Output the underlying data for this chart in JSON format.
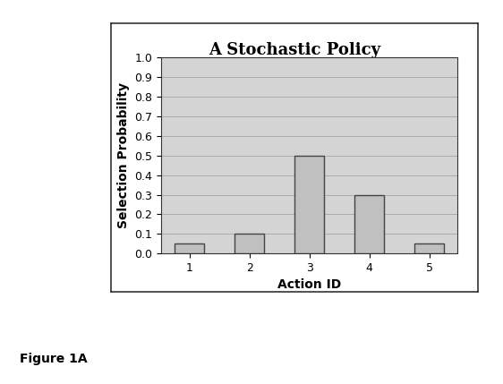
{
  "title": "A Stochastic Policy",
  "xlabel": "Action ID",
  "ylabel": "Selection Probability",
  "categories": [
    1,
    2,
    3,
    4,
    5
  ],
  "values": [
    0.05,
    0.1,
    0.5,
    0.3,
    0.05
  ],
  "bar_color": "#c0c0c0",
  "bar_edge_color": "#444444",
  "plot_bg_color": "#d4d4d4",
  "figure_bg_color": "#ffffff",
  "box_bg_color": "#ffffff",
  "ylim": [
    0,
    1.0
  ],
  "yticks": [
    0,
    0.1,
    0.2,
    0.3,
    0.4,
    0.5,
    0.6,
    0.7,
    0.8,
    0.9,
    1
  ],
  "grid_color": "#aaaaaa",
  "title_fontsize": 13,
  "label_fontsize": 10,
  "tick_fontsize": 9,
  "figure_caption": "Figure 1A",
  "caption_fontsize": 10
}
